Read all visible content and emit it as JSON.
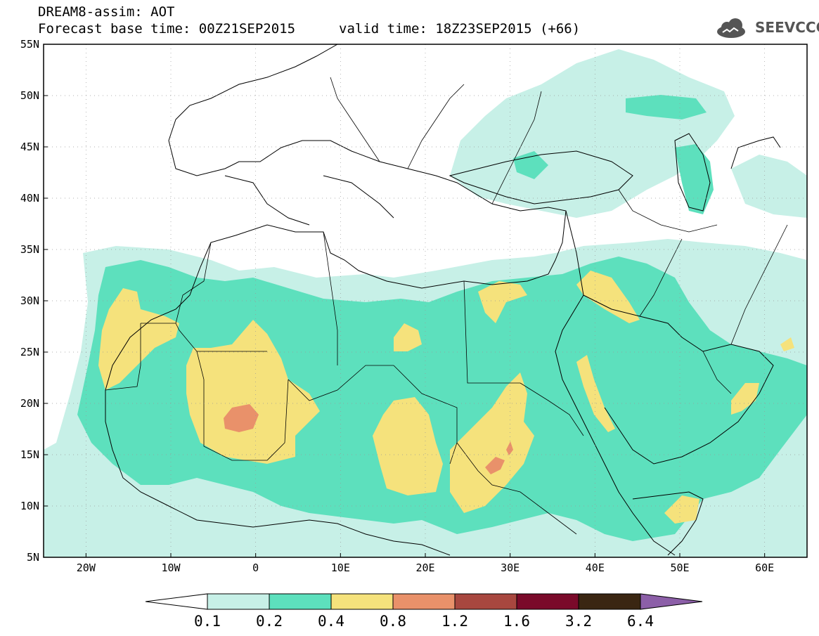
{
  "title": {
    "line1": "DREAM8-assim: AOT",
    "line2": "Forecast base time: 00Z21SEP2015",
    "valid": "valid time: 18Z23SEP2015 (+66)"
  },
  "logo": {
    "text": "SEEVCCC"
  },
  "axes": {
    "lat_labels": [
      "55N",
      "50N",
      "45N",
      "40N",
      "35N",
      "30N",
      "25N",
      "20N",
      "15N",
      "10N",
      "5N"
    ],
    "lon_labels": [
      "20W",
      "10W",
      "0",
      "10E",
      "20E",
      "30E",
      "40E",
      "50E",
      "60E"
    ],
    "lat_range": [
      5,
      55
    ],
    "lon_range": [
      -25,
      65
    ]
  },
  "colorbar": {
    "labels": [
      "0.1",
      "0.2",
      "0.4",
      "0.8",
      "1.2",
      "1.6",
      "3.2",
      "6.4"
    ],
    "colors": [
      "#ffffff",
      "#c7f0e7",
      "#5de0bd",
      "#f5e27c",
      "#e9916a",
      "#a8473f",
      "#7a0a2a",
      "#3a2612",
      "#8c5fa8"
    ]
  },
  "field_colors": {
    "level_0_1": "#c7f0e7",
    "level_0_2": "#5de0bd",
    "level_0_4": "#f5e27c",
    "level_0_8": "#e9916a"
  }
}
